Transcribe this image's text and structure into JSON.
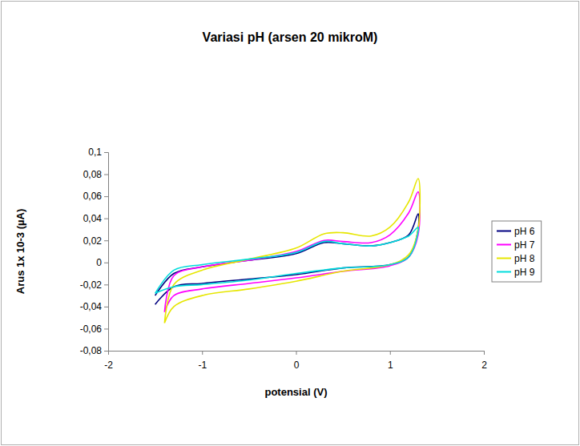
{
  "chart_data": {
    "type": "line",
    "title": "Variasi pH (arsen 20 mikroM)",
    "x_label": "potensial (V)",
    "y_label": "Arus 1x 10-3 (µA)",
    "xlim": [
      -2,
      2
    ],
    "xticks": [
      -2,
      -1,
      0,
      1,
      2
    ],
    "ylim": [
      -0.08,
      0.1
    ],
    "yticks": [
      {
        "value": -0.08,
        "label": "-0,08"
      },
      {
        "value": -0.06,
        "label": "-0,06"
      },
      {
        "value": -0.04,
        "label": "-0,04"
      },
      {
        "value": -0.02,
        "label": "-0,02"
      },
      0,
      {
        "value": 0.02,
        "label": "0,02"
      },
      {
        "value": 0.04,
        "label": "0,04"
      },
      {
        "value": 0.06,
        "label": "0,06"
      },
      {
        "value": 0.08,
        "label": "0,08"
      },
      {
        "value": 0.1,
        "label": "0,1"
      }
    ],
    "grid": false,
    "legend": "right",
    "series": [
      {
        "name": "pH 6",
        "color": "#000080",
        "x": [
          -1.5,
          -1.3,
          -1,
          -0.5,
          0,
          0.3,
          0.5,
          0.8,
          1.0,
          1.2,
          1.3,
          1.3,
          1.2,
          1.0,
          0.5,
          0,
          -0.5,
          -1,
          -1.3,
          -1.5
        ],
        "values": [
          -0.03,
          -0.01,
          -0.004,
          0.002,
          0.008,
          0.018,
          0.017,
          0.015,
          0.018,
          0.025,
          0.044,
          0.03,
          0.005,
          -0.002,
          -0.005,
          -0.011,
          -0.015,
          -0.019,
          -0.022,
          -0.038
        ]
      },
      {
        "name": "pH 7",
        "color": "#ff00ff",
        "x": [
          -1.4,
          -1.3,
          -1,
          -0.5,
          0,
          0.3,
          0.5,
          0.8,
          1.0,
          1.2,
          1.3,
          1.3,
          1.2,
          1.0,
          0.5,
          0,
          -0.5,
          -1,
          -1.3,
          -1.4
        ],
        "values": [
          -0.045,
          -0.012,
          -0.004,
          0.002,
          0.01,
          0.02,
          0.019,
          0.018,
          0.025,
          0.045,
          0.064,
          0.025,
          0.005,
          -0.003,
          -0.008,
          -0.014,
          -0.019,
          -0.024,
          -0.03,
          -0.045
        ]
      },
      {
        "name": "pH 8",
        "color": "#e6e600",
        "x": [
          -1.4,
          -1.3,
          -1,
          -0.5,
          0,
          0.3,
          0.5,
          0.8,
          1.0,
          1.2,
          1.3,
          1.3,
          1.2,
          1.0,
          0.5,
          0,
          -0.5,
          -1,
          -1.3,
          -1.4
        ],
        "values": [
          -0.055,
          -0.02,
          -0.007,
          0.003,
          0.013,
          0.026,
          0.027,
          0.024,
          0.032,
          0.055,
          0.076,
          0.03,
          0.007,
          -0.002,
          -0.008,
          -0.017,
          -0.024,
          -0.03,
          -0.04,
          -0.055
        ]
      },
      {
        "name": "pH 9",
        "color": "#00dcdc",
        "x": [
          -1.5,
          -1.3,
          -1,
          -0.5,
          0,
          0.3,
          0.5,
          0.8,
          1.0,
          1.2,
          1.3,
          1.3,
          1.2,
          1.0,
          0.5,
          0,
          -0.5,
          -1,
          -1.3,
          -1.5
        ],
        "values": [
          -0.028,
          -0.007,
          -0.002,
          0.003,
          0.009,
          0.019,
          0.017,
          0.015,
          0.018,
          0.024,
          0.032,
          0.028,
          0.005,
          -0.002,
          -0.005,
          -0.01,
          -0.016,
          -0.02,
          -0.022,
          -0.028
        ]
      }
    ]
  }
}
